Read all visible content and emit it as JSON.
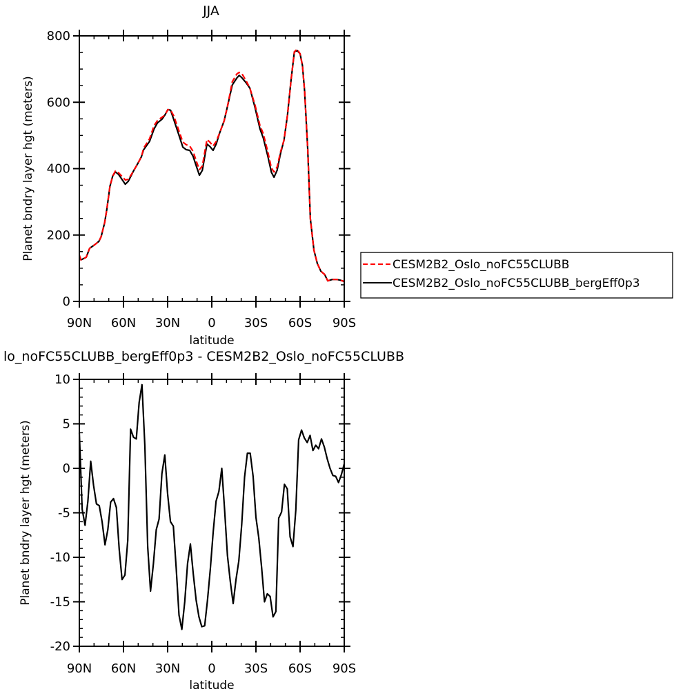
{
  "chart_data": [
    {
      "type": "line",
      "title": "JJA",
      "xlabel": "latitude",
      "ylabel": "Planet bndry layer hgt (meters)",
      "xlim": [
        90,
        -90
      ],
      "ylim": [
        0,
        800
      ],
      "xticks": [
        90,
        60,
        30,
        0,
        -30,
        -60,
        -90
      ],
      "xtick_labels": [
        "90N",
        "60N",
        "30N",
        "0",
        "30S",
        "60S",
        "90S"
      ],
      "yticks": [
        0,
        200,
        400,
        600,
        800
      ],
      "ytick_labels": [
        "0",
        "200",
        "400",
        "600",
        "800"
      ],
      "legend_position": "right",
      "x": [
        90,
        88.9,
        85.3,
        83.0,
        79.8,
        76.7,
        75.2,
        72.8,
        71.3,
        69.2,
        67.3,
        65.5,
        63.4,
        61.1,
        58.8,
        56.7,
        53.3,
        50.2,
        47.8,
        46.3,
        42.3,
        39.2,
        36.9,
        33.8,
        31.9,
        29.8,
        28.0,
        25.9,
        22.8,
        19.7,
        17.3,
        15.0,
        12.7,
        10.3,
        8.4,
        6.4,
        3.3,
        1.3,
        -0.9,
        -3.0,
        -5.3,
        -8.4,
        -10.8,
        -13.9,
        -17.0,
        -18.6,
        -20.2,
        -23.3,
        -25.9,
        -29.5,
        -32.7,
        -35.0,
        -38.1,
        -40.5,
        -42.3,
        -44.4,
        -46.7,
        -49.1,
        -51.4,
        -53.8,
        -56.1,
        -58.0,
        -60.0,
        -61.6,
        -63.1,
        -65.2,
        -67.0,
        -69.4,
        -71.7,
        -74.1,
        -76.7,
        -78.8,
        -81.9,
        -85.0,
        -87.3,
        -90
      ],
      "series": [
        {
          "name": "CESM2B2_Oslo_noFC55CLUBB",
          "color": "#ff0000",
          "dash": "dashed",
          "values": [
            139,
            125,
            133,
            160,
            170,
            181,
            195,
            237,
            278,
            347,
            378,
            393,
            388,
            377,
            366,
            368,
            392,
            416,
            436,
            462,
            490,
            530,
            545,
            555,
            561,
            578,
            576,
            560,
            520,
            480,
            472,
            468,
            452,
            420,
            397,
            408,
            488,
            480,
            468,
            482,
            507,
            544,
            590,
            662,
            685,
            690,
            688,
            665,
            642,
            590,
            530,
            505,
            450,
            402,
            390,
            405,
            450,
            486,
            561,
            665,
            752,
            760,
            746,
            711,
            632,
            457,
            249,
            154,
            114,
            91,
            81,
            62,
            66,
            66,
            64,
            60
          ]
        },
        {
          "name": "CESM2B2_Oslo_noFC55CLUBB_bergEff0p3",
          "color": "#000000",
          "dash": "solid",
          "values": [
            139,
            125,
            133,
            160,
            170,
            181,
            195,
            237,
            278,
            347,
            378,
            390,
            383,
            368,
            353,
            362,
            392,
            416,
            436,
            457,
            482,
            520,
            538,
            549,
            561,
            578,
            576,
            549,
            507,
            465,
            457,
            455,
            437,
            405,
            380,
            395,
            474,
            467,
            455,
            474,
            507,
            544,
            590,
            652,
            673,
            681,
            675,
            659,
            642,
            582,
            520,
            492,
            437,
            389,
            374,
            395,
            445,
            486,
            561,
            665,
            752,
            756,
            746,
            711,
            632,
            457,
            249,
            154,
            114,
            91,
            81,
            62,
            66,
            66,
            64,
            60
          ]
        }
      ]
    },
    {
      "type": "line",
      "title": "lo_noFC55CLUBB_bergEff0p3 - CESM2B2_Oslo_noFC55CLUBB",
      "xlabel": "latitude",
      "ylabel": "Planet bndry layer hgt (meters)",
      "xlim": [
        90,
        -90
      ],
      "ylim": [
        -20,
        10
      ],
      "xticks": [
        90,
        60,
        30,
        0,
        -30,
        -60,
        -90
      ],
      "xtick_labels": [
        "90N",
        "60N",
        "30N",
        "0",
        "30S",
        "60S",
        "90S"
      ],
      "yticks": [
        10,
        5,
        0,
        -5,
        -10,
        -15,
        -20
      ],
      "ytick_labels": [
        "10",
        "5",
        "0",
        "-5",
        "-10",
        "-15",
        "-20"
      ],
      "lat_start": 90,
      "lat_end": -90,
      "series": [
        {
          "name": "difference",
          "color": "#000000",
          "values": [
            4.0,
            -4.6,
            -6.4,
            -3.7,
            0.8,
            -1.9,
            -4.0,
            -4.2,
            -6.0,
            -8.6,
            -6.9,
            -3.8,
            -3.4,
            -4.4,
            -9.1,
            -12.5,
            -12.0,
            -8.1,
            4.4,
            3.5,
            3.3,
            7.4,
            9.4,
            2.5,
            -8.8,
            -13.8,
            -10.7,
            -6.9,
            -5.7,
            -0.6,
            1.5,
            -2.9,
            -6.0,
            -6.5,
            -11.2,
            -16.5,
            -18.1,
            -15.0,
            -10.7,
            -8.5,
            -11.9,
            -14.8,
            -16.7,
            -17.8,
            -17.7,
            -14.8,
            -11.3,
            -7.1,
            -3.7,
            -2.6,
            0,
            -4.7,
            -9.8,
            -12.7,
            -15.2,
            -12.5,
            -10.4,
            -6.3,
            -1.0,
            1.7,
            1.7,
            -0.9,
            -5.5,
            -7.8,
            -11.2,
            -15.0,
            -14.1,
            -14.4,
            -16.7,
            -16.1,
            -5.6,
            -4.9,
            -1.8,
            -2.3,
            -7.7,
            -8.8,
            -4.7,
            3.2,
            4.3,
            3.4,
            2.9,
            3.7,
            2.0,
            2.6,
            2.2,
            3.3,
            2.4,
            1.1,
            0,
            -0.8,
            -0.9,
            -1.6,
            -0.7,
            0.5
          ]
        }
      ]
    }
  ]
}
